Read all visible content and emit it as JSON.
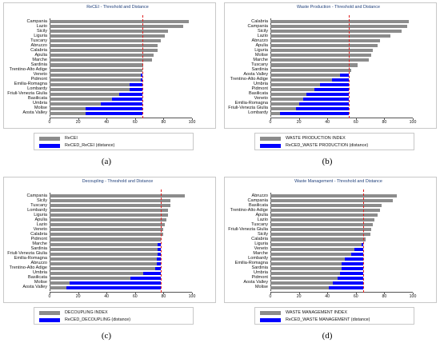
{
  "colors": {
    "grey": "#8c8c8c",
    "blue": "#0000ff",
    "threshold": "#e02020"
  },
  "chart_data": [
    {
      "panel_label": "(a)",
      "type": "bar",
      "title": "ReCEI - Threshold and Distance",
      "threshold": 65,
      "xlim": [
        0,
        100
      ],
      "x_ticks": [
        "0",
        "20",
        "40",
        "60",
        "80",
        "100"
      ],
      "legend": [
        "ReCEI",
        "ReCED_ReCEI (distance)"
      ],
      "categories": [
        "Campania",
        "Lazio",
        "Sicily",
        "Liguria",
        "Tuscany",
        "Abruzzo",
        "Calabria",
        "Apulia",
        "Marche",
        "Sardinia",
        "Trentino-Alto Adige",
        "Veneto",
        "Pidmont",
        "Emilia-Romagna",
        "Lombardy",
        "Friuli-Venezia Giulia",
        "Basilicata",
        "Umbria",
        "Molise",
        "Aosta Valley"
      ],
      "values": [
        98,
        94,
        83,
        81,
        78,
        76,
        76,
        73,
        72,
        66,
        65,
        64,
        64,
        56,
        56,
        49,
        44,
        36,
        25,
        25
      ]
    },
    {
      "panel_label": "(b)",
      "type": "bar",
      "title": "Waste Production - Threshold and Distance",
      "threshold": 55,
      "xlim": [
        0,
        100
      ],
      "x_ticks": [
        "0",
        "20",
        "40",
        "60",
        "80",
        "100"
      ],
      "legend": [
        "WASTE PRODUCTION INDEX",
        "ReCED_WASTE PRODUCTION (distance)"
      ],
      "categories": [
        "Calabria",
        "Campania",
        "Sicily",
        "Lazio",
        "Abruzzo",
        "Apulia",
        "Liguria",
        "Molise",
        "Marche",
        "Tuscany",
        "Sardinia",
        "Aosta Valley",
        "Trentino-Alto Adige",
        "Umbria",
        "Pidmont",
        "Basilicata",
        "Veneto",
        "Emilia-Romagna",
        "Friuli-Venezia Giulia",
        "Lombardy"
      ],
      "values": [
        97,
        96,
        92,
        84,
        77,
        75,
        72,
        71,
        69,
        61,
        57,
        49,
        43,
        35,
        31,
        25,
        23,
        20,
        18,
        7
      ]
    },
    {
      "panel_label": "(c)",
      "type": "bar",
      "title": "Decoupling - Threshold and Distance",
      "threshold": 78,
      "xlim": [
        0,
        100
      ],
      "x_ticks": [
        "0",
        "20",
        "40",
        "60",
        "80",
        "100"
      ],
      "legend": [
        "DECOUPLING INDEX",
        "ReCED_DECOUPLING (distance)"
      ],
      "categories": [
        "Campania",
        "Sicily",
        "Tuscany",
        "Lombardy",
        "Liguria",
        "Apulia",
        "Lazio",
        "Veneto",
        "Calabria",
        "Pidmont",
        "Marche",
        "Sardinia",
        "Friuli-Venezia Giulia",
        "Emilia-Romagna",
        "Abruzzo",
        "Trentino-Alto Adige",
        "Umbria",
        "Basilicata",
        "Molise",
        "Aosta Valley"
      ],
      "values": [
        95,
        85,
        85,
        83,
        83,
        82,
        81,
        80,
        80,
        78,
        76,
        76,
        76,
        75,
        75,
        74,
        66,
        57,
        14,
        12
      ]
    },
    {
      "panel_label": "(d)",
      "type": "bar",
      "title": "Waste Management - Threshold and Distance",
      "threshold": 65,
      "xlim": [
        0,
        100
      ],
      "x_ticks": [
        "0",
        "20",
        "40",
        "60",
        "80",
        "100"
      ],
      "legend": [
        "WASTE MANAGEMENT INDEX",
        "ReCED_WASTE MANAGEMENT (distance)"
      ],
      "categories": [
        "Abruzzo",
        "Campania",
        "Basilicata",
        "Trentino-Alto Adige",
        "Apulia",
        "Lazio",
        "Tuscany",
        "Friuli-Venezia Giulia",
        "Sicily",
        "Calabria",
        "Liguria",
        "Veneto",
        "Marche",
        "Lombardy",
        "Emilia-Romagna",
        "Sardinia",
        "Umbria",
        "Pidmont",
        "Aosta Valley",
        "Molise"
      ],
      "values": [
        89,
        86,
        78,
        77,
        75,
        73,
        72,
        71,
        70,
        67,
        64,
        59,
        57,
        52,
        50,
        50,
        49,
        47,
        44,
        41
      ]
    }
  ]
}
